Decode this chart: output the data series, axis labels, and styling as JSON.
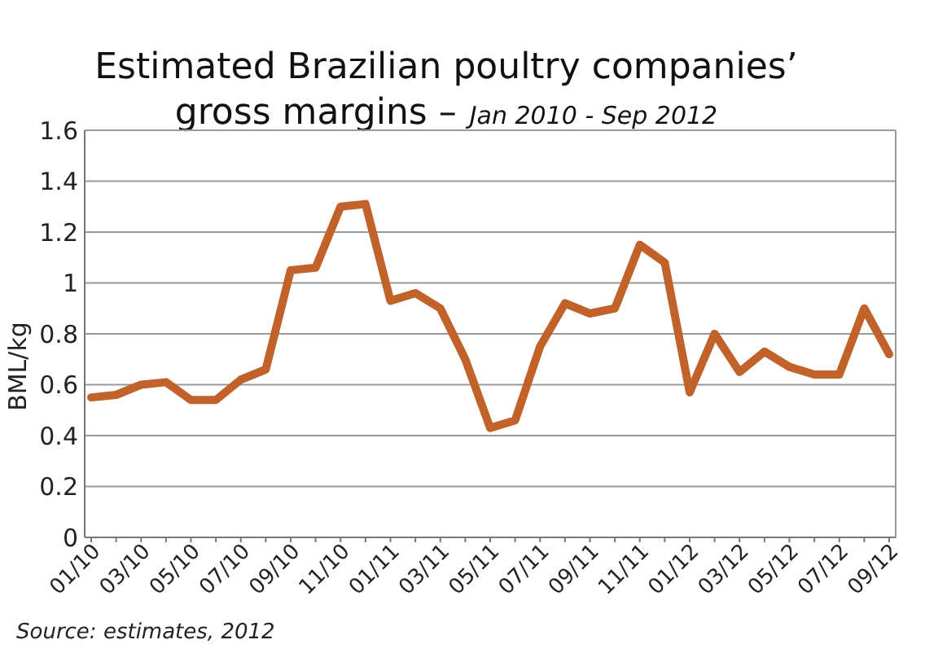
{
  "chart_data": {
    "type": "line",
    "title": "Estimated Brazilian poultry companies’ gross margins –",
    "subtitle": "Jan 2010 - Sep 2012",
    "ylabel": "BML/kg",
    "categories": [
      "01/10",
      null,
      "03/10",
      null,
      "05/10",
      null,
      "07/10",
      null,
      "09/10",
      null,
      "11/10",
      null,
      "01/11",
      null,
      "03/11",
      null,
      "05/11",
      null,
      "07/11",
      null,
      "09/11",
      null,
      "11/11",
      null,
      "01/12",
      null,
      "03/12",
      null,
      "05/12",
      null,
      "07/12",
      null,
      "09/12"
    ],
    "series": [
      {
        "color": "#c0622a",
        "values": [
          0.55,
          0.56,
          0.6,
          0.61,
          0.54,
          0.54,
          0.62,
          0.66,
          1.05,
          1.06,
          1.3,
          1.31,
          0.93,
          0.96,
          0.9,
          0.7,
          0.43,
          0.46,
          0.75,
          0.92,
          0.88,
          0.9,
          1.15,
          1.08,
          0.57,
          0.8,
          0.65,
          0.73,
          0.67,
          0.64,
          0.64,
          0.9,
          0.72
        ]
      }
    ],
    "ylim": [
      0,
      1.6
    ],
    "yticks": [
      0,
      0.2,
      0.4,
      0.6,
      0.8,
      1.0,
      1.2,
      1.4,
      1.6
    ],
    "grid": "y",
    "marker": "none",
    "line_style": "solid",
    "annotations": [
      "Source: estimates, 2012"
    ]
  }
}
